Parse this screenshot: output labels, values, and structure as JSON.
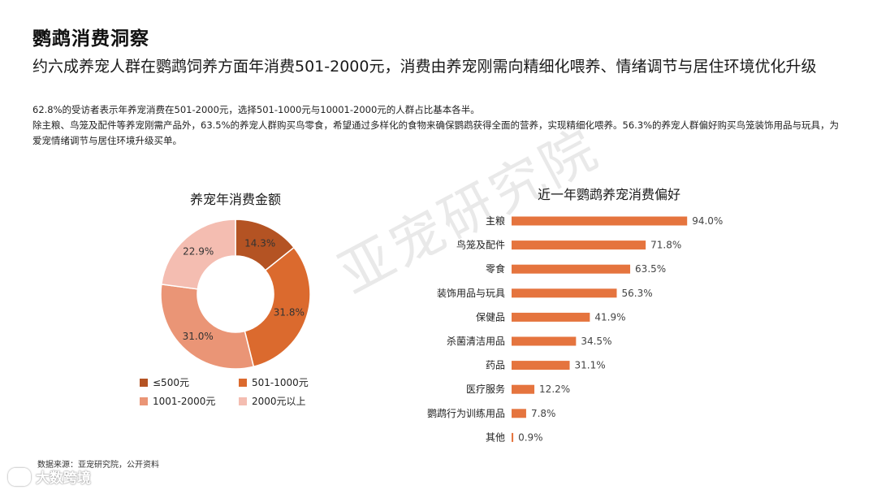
{
  "page": {
    "title": "鹦鹉消费洞察",
    "headline": "约六成养宠人群在鹦鹉饲养方面年消费501-2000元，消费由养宠刚需向精细化喂养、情绪调节与居住环境优化升级",
    "desc_line1": "62.8%的受访者表示年养宠消费在501-2000元，选择501-1000元与10001-2000元的人群占比基本各半。",
    "desc_line2": "除主粮、鸟笼及配件等养宠刚需产品外，63.5%的养宠人群购买鸟零食，希望通过多样化的食物来确保鹦鹉获得全面的营养，实现精细化喂养。56.3%的养宠人群偏好购买鸟笼装饰用品与玩具，为爱宠情绪调节与居住环境升级买单。"
  },
  "watermark": "亚宠研究院",
  "source": "数据来源：亚宠研究院，公开资料",
  "brand": "大数跨境",
  "chart_data": [
    {
      "type": "pie",
      "variant": "donut",
      "title": "养宠年消费金额",
      "categories": [
        "≤500元",
        "501-1000元",
        "1001-2000元",
        "2000元以上"
      ],
      "values": [
        14.3,
        31.8,
        31.0,
        22.9
      ],
      "labels": [
        "14.3%",
        "31.8%",
        "31.0%",
        "22.9%"
      ],
      "colors": [
        "#b45323",
        "#db6a2e",
        "#ea9576",
        "#f4bdb1"
      ],
      "legend_position": "bottom"
    },
    {
      "type": "bar",
      "orientation": "horizontal",
      "title": "近一年鹦鹉养宠消费偏好",
      "categories": [
        "主粮",
        "鸟笼及配件",
        "零食",
        "装饰用品与玩具",
        "保健品",
        "杀菌清洁用品",
        "药品",
        "医疗服务",
        "鹦鹉行为训练用品",
        "其他"
      ],
      "values": [
        94.0,
        71.8,
        63.5,
        56.3,
        41.9,
        34.5,
        31.1,
        12.2,
        7.8,
        0.9
      ],
      "labels": [
        "94.0%",
        "71.8%",
        "63.5%",
        "56.3%",
        "41.9%",
        "34.5%",
        "31.1%",
        "12.2%",
        "7.8%",
        "0.9%"
      ],
      "color": "#e5743e",
      "xlim": [
        0,
        100
      ],
      "grid": false
    }
  ]
}
